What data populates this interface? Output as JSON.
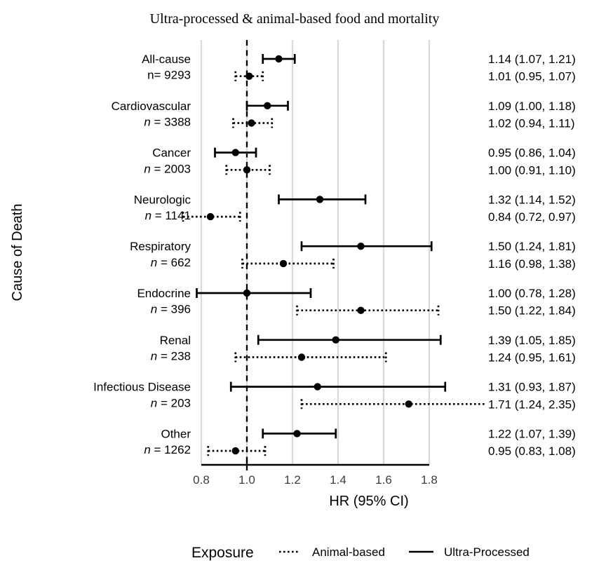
{
  "title": "Ultra-processed & animal-based food and mortality",
  "axis": {
    "y_title": "Cause of Death",
    "x_title": "HR (95% CI)",
    "x_tick_labels": [
      "0.8",
      "1.0",
      "1.2",
      "1.4",
      "1.6",
      "1.8"
    ]
  },
  "legend": {
    "title": "Exposure",
    "items": [
      {
        "name": "Animal-based",
        "style": "dotted"
      },
      {
        "name": "Ultra-Processed",
        "style": "solid"
      }
    ]
  },
  "colors": {
    "marker": "#000000",
    "line": "#000000",
    "grid": "#d9d9d9",
    "tick_text": "#3d3d3d",
    "text": "#000000",
    "background": "#ffffff"
  },
  "chart_data": {
    "type": "forest",
    "x_label": "HR (95% CI)",
    "x_ticks": [
      0.8,
      1.0,
      1.2,
      1.4,
      1.6,
      1.8
    ],
    "x_axis_range": [
      0.8,
      1.8
    ],
    "reference_line": 1.0,
    "grid": true,
    "legend_position": "bottom",
    "series_order": [
      "Ultra-Processed",
      "Animal-based"
    ],
    "groups": [
      {
        "cause": "All-cause",
        "n": 9293,
        "n_label": "n= 9293",
        "n_italic": false,
        "ultra_processed": {
          "hr": 1.14,
          "ci_low": 1.07,
          "ci_high": 1.21,
          "label": "1.14 (1.07, 1.21)"
        },
        "animal_based": {
          "hr": 1.01,
          "ci_low": 0.95,
          "ci_high": 1.07,
          "label": "1.01 (0.95, 1.07)"
        }
      },
      {
        "cause": "Cardiovascular",
        "n": 3388,
        "n_label": "n = 3388",
        "n_italic": true,
        "ultra_processed": {
          "hr": 1.09,
          "ci_low": 1.0,
          "ci_high": 1.18,
          "label": "1.09 (1.00, 1.18)"
        },
        "animal_based": {
          "hr": 1.02,
          "ci_low": 0.94,
          "ci_high": 1.11,
          "label": "1.02 (0.94, 1.11)"
        }
      },
      {
        "cause": "Cancer",
        "n": 2003,
        "n_label": "n = 2003",
        "n_italic": true,
        "ultra_processed": {
          "hr": 0.95,
          "ci_low": 0.86,
          "ci_high": 1.04,
          "label": "0.95 (0.86, 1.04)"
        },
        "animal_based": {
          "hr": 1.0,
          "ci_low": 0.91,
          "ci_high": 1.1,
          "label": "1.00 (0.91, 1.10)"
        }
      },
      {
        "cause": "Neurologic",
        "n": 1141,
        "n_label": "n = 1141",
        "n_italic": true,
        "ultra_processed": {
          "hr": 1.32,
          "ci_low": 1.14,
          "ci_high": 1.52,
          "label": "1.32 (1.14, 1.52)"
        },
        "animal_based": {
          "hr": 0.84,
          "ci_low": 0.72,
          "ci_high": 0.97,
          "label": "0.84 (0.72, 0.97)"
        }
      },
      {
        "cause": "Respiratory",
        "n": 662,
        "n_label": "n = 662",
        "n_italic": true,
        "ultra_processed": {
          "hr": 1.5,
          "ci_low": 1.24,
          "ci_high": 1.81,
          "label": "1.50 (1.24, 1.81)"
        },
        "animal_based": {
          "hr": 1.16,
          "ci_low": 0.98,
          "ci_high": 1.38,
          "label": "1.16 (0.98, 1.38)"
        }
      },
      {
        "cause": "Endocrine",
        "n": 396,
        "n_label": "n = 396",
        "n_italic": true,
        "ultra_processed": {
          "hr": 1.0,
          "ci_low": 0.78,
          "ci_high": 1.28,
          "label": "1.00 (0.78, 1.28)"
        },
        "animal_based": {
          "hr": 1.5,
          "ci_low": 1.22,
          "ci_high": 1.84,
          "label": "1.50 (1.22, 1.84)"
        }
      },
      {
        "cause": "Renal",
        "n": 238,
        "n_label": "n = 238",
        "n_italic": true,
        "ultra_processed": {
          "hr": 1.39,
          "ci_low": 1.05,
          "ci_high": 1.85,
          "label": "1.39 (1.05, 1.85)"
        },
        "animal_based": {
          "hr": 1.24,
          "ci_low": 0.95,
          "ci_high": 1.61,
          "label": "1.24 (0.95, 1.61)"
        }
      },
      {
        "cause": "Infectious Disease",
        "n": 203,
        "n_label": "n = 203",
        "n_italic": true,
        "ultra_processed": {
          "hr": 1.31,
          "ci_low": 0.93,
          "ci_high": 1.87,
          "label": "1.31 (0.93, 1.87)"
        },
        "animal_based": {
          "hr": 1.71,
          "ci_low": 1.24,
          "ci_high": 2.35,
          "label": "1.71 (1.24, 2.35)"
        }
      },
      {
        "cause": "Other",
        "n": 1262,
        "n_label": "n = 1262",
        "n_italic": true,
        "ultra_processed": {
          "hr": 1.22,
          "ci_low": 1.07,
          "ci_high": 1.39,
          "label": "1.22 (1.07, 1.39)"
        },
        "animal_based": {
          "hr": 0.95,
          "ci_low": 0.83,
          "ci_high": 1.08,
          "label": "0.95 (0.83, 1.08)"
        }
      }
    ]
  }
}
